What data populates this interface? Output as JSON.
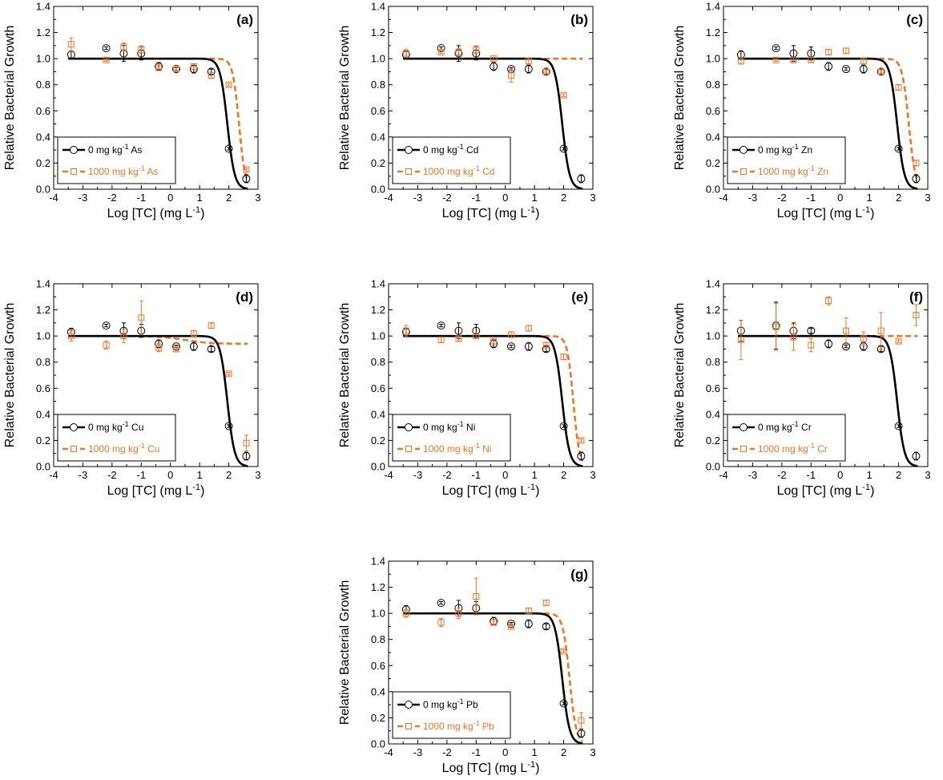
{
  "figure": {
    "xlabel": "Log [TC] (mg L",
    "xlabel_sup": "-1",
    "xlabel_end": ")",
    "ylabel": "Relative Bacterial Growth",
    "colors": {
      "control": "#000000",
      "treated": "#e8772e"
    }
  },
  "chart_data": [
    {
      "type": "scatter",
      "panel": "(a)",
      "metal": "As",
      "xlim": [
        -4,
        3
      ],
      "ylim": [
        0,
        1.4
      ],
      "xticks": [
        "-4",
        "-3",
        "-2",
        "-1",
        "0",
        "1",
        "2",
        "3"
      ],
      "yticks": [
        "0.0",
        "0.2",
        "0.4",
        "0.6",
        "0.8",
        "1.0",
        "1.2",
        "1.4"
      ],
      "x": [
        -3.4,
        -2.2,
        -1.6,
        -1.0,
        -0.4,
        0.2,
        0.8,
        1.4,
        2.0,
        2.6
      ],
      "series": [
        {
          "name": "0 mg kg-1 As",
          "legend_pre": "0 mg kg",
          "legend_post": " As",
          "values": [
            1.03,
            1.08,
            1.04,
            1.04,
            0.94,
            0.92,
            0.92,
            0.9,
            0.31,
            0.08
          ],
          "errors": [
            0.03,
            0.01,
            0.06,
            0.05,
            0.03,
            0.01,
            0.03,
            0.02,
            0.01,
            0.03
          ],
          "fit": {
            "top": 1.0,
            "bottom": 0,
            "logEC50": 1.95,
            "hill": 3.5
          }
        },
        {
          "name": "1000 mg kg-1 As",
          "legend_pre": "1000 mg kg",
          "legend_post": " As",
          "values": [
            1.11,
            0.99,
            1.09,
            1.07,
            0.93,
            0.92,
            0.94,
            0.87,
            0.8,
            0.15
          ],
          "errors": [
            0.05,
            0.01,
            0.03,
            0.03,
            0.01,
            0.02,
            0.02,
            0.02,
            0.01,
            0.01
          ],
          "fit": {
            "top": 1.0,
            "bottom": 0,
            "logEC50": 2.35,
            "hill": 4.0
          }
        }
      ]
    },
    {
      "type": "scatter",
      "panel": "(b)",
      "metal": "Cd",
      "xlim": [
        -4,
        3
      ],
      "ylim": [
        0,
        1.4
      ],
      "xticks": [
        "-4",
        "-3",
        "-2",
        "-1",
        "0",
        "1",
        "2",
        "3"
      ],
      "yticks": [
        "0.0",
        "0.2",
        "0.4",
        "0.6",
        "0.8",
        "1.0",
        "1.2",
        "1.4"
      ],
      "x": [
        -3.4,
        -2.2,
        -1.6,
        -1.0,
        -0.4,
        0.2,
        0.8,
        1.4,
        2.0,
        2.6
      ],
      "series": [
        {
          "name": "0 mg kg-1 Cd",
          "legend_pre": "0 mg kg",
          "legend_post": " Cd",
          "values": [
            1.03,
            1.08,
            1.04,
            1.04,
            0.94,
            0.92,
            0.92,
            0.9,
            0.31,
            0.08
          ],
          "errors": [
            0.03,
            0.01,
            0.06,
            0.05,
            0.03,
            0.01,
            0.03,
            0.02,
            0.01,
            0.03
          ],
          "fit": {
            "top": 1.0,
            "bottom": 0,
            "logEC50": 1.95,
            "hill": 3.5
          }
        },
        {
          "name": "1000 mg kg-1 Cd",
          "legend_pre": "1000 mg kg",
          "legend_post": " Cd",
          "values": [
            1.04,
            1.05,
            1.05,
            1.07,
            1.0,
            0.87,
            0.98,
            0.9,
            0.72,
            null
          ],
          "errors": [
            0.03,
            0.01,
            0.03,
            0.03,
            0.01,
            0.05,
            0.02,
            0.01,
            0.01,
            0
          ],
          "fit": {
            "top": 1.0,
            "bottom": 0,
            "logEC50": 8.0,
            "hill": 1.0
          }
        }
      ]
    },
    {
      "type": "scatter",
      "panel": "(c)",
      "metal": "Zn",
      "xlim": [
        -4,
        3
      ],
      "ylim": [
        0,
        1.4
      ],
      "xticks": [
        "-4",
        "-3",
        "-2",
        "-1",
        "0",
        "1",
        "2",
        "3"
      ],
      "yticks": [
        "0.0",
        "0.2",
        "0.4",
        "0.6",
        "0.8",
        "1.0",
        "1.2",
        "1.4"
      ],
      "x": [
        -3.4,
        -2.2,
        -1.6,
        -1.0,
        -0.4,
        0.2,
        0.8,
        1.4,
        2.0,
        2.6
      ],
      "series": [
        {
          "name": "0 mg kg-1 Zn",
          "legend_pre": "0 mg kg",
          "legend_post": " Zn",
          "values": [
            1.03,
            1.08,
            1.04,
            1.04,
            0.94,
            0.92,
            0.92,
            0.9,
            0.31,
            0.08
          ],
          "errors": [
            0.03,
            0.01,
            0.06,
            0.05,
            0.03,
            0.01,
            0.03,
            0.02,
            0.01,
            0.03
          ],
          "fit": {
            "top": 1.0,
            "bottom": 0,
            "logEC50": 1.95,
            "hill": 3.5
          }
        },
        {
          "name": "1000 mg kg-1 Zn",
          "legend_pre": "1000 mg kg",
          "legend_post": " Zn",
          "values": [
            0.98,
            0.99,
            0.99,
            0.99,
            1.05,
            1.06,
            0.98,
            0.9,
            0.78,
            0.2
          ],
          "errors": [
            0.02,
            0.01,
            0.02,
            0.02,
            0.02,
            0.02,
            0.02,
            0.01,
            0.02,
            0.02
          ],
          "fit": {
            "top": 1.0,
            "bottom": 0,
            "logEC50": 2.35,
            "hill": 3.8
          }
        }
      ]
    },
    {
      "type": "scatter",
      "panel": "(d)",
      "metal": "Cu",
      "xlim": [
        -4,
        3
      ],
      "ylim": [
        0,
        1.4
      ],
      "xticks": [
        "-4",
        "-3",
        "-2",
        "-1",
        "0",
        "1",
        "2",
        "3"
      ],
      "yticks": [
        "0.0",
        "0.2",
        "0.4",
        "0.6",
        "0.8",
        "1.0",
        "1.2",
        "1.4"
      ],
      "x": [
        -3.4,
        -2.2,
        -1.6,
        -1.0,
        -0.4,
        0.2,
        0.8,
        1.4,
        2.0,
        2.6
      ],
      "series": [
        {
          "name": "0 mg kg-1 Cu",
          "legend_pre": "0 mg kg",
          "legend_post": " Cu",
          "values": [
            1.03,
            1.08,
            1.04,
            1.04,
            0.94,
            0.92,
            0.92,
            0.9,
            0.31,
            0.08
          ],
          "errors": [
            0.03,
            0.01,
            0.06,
            0.05,
            0.03,
            0.01,
            0.03,
            0.02,
            0.01,
            0.03
          ],
          "fit": {
            "top": 1.0,
            "bottom": 0,
            "logEC50": 1.95,
            "hill": 3.5
          }
        },
        {
          "name": "1000 mg kg-1 Cu",
          "legend_pre": "1000 mg kg",
          "legend_post": " Cu",
          "values": [
            1.0,
            0.93,
            1.0,
            1.14,
            0.91,
            0.9,
            1.02,
            1.08,
            0.71,
            0.18
          ],
          "errors": [
            0.04,
            0.03,
            0.05,
            0.13,
            0.03,
            0.02,
            0.02,
            0.02,
            0.01,
            0.06
          ],
          "fit": {
            "top": 1.0,
            "bottom": 0.94,
            "logEC50": 0.5,
            "hill": 1.0
          }
        }
      ]
    },
    {
      "type": "scatter",
      "panel": "(e)",
      "metal": "Ni",
      "xlim": [
        -4,
        3
      ],
      "ylim": [
        0,
        1.4
      ],
      "xticks": [
        "-4",
        "-3",
        "-2",
        "-1",
        "0",
        "1",
        "2",
        "3"
      ],
      "yticks": [
        "0.0",
        "0.2",
        "0.4",
        "0.6",
        "0.8",
        "1.0",
        "1.2",
        "1.4"
      ],
      "x": [
        -3.4,
        -2.2,
        -1.6,
        -1.0,
        -0.4,
        0.2,
        0.8,
        1.4,
        2.0,
        2.6
      ],
      "series": [
        {
          "name": "0 mg kg-1 Ni",
          "legend_pre": "0 mg kg",
          "legend_post": " Ni",
          "values": [
            1.03,
            1.08,
            1.04,
            1.04,
            0.94,
            0.92,
            0.92,
            0.9,
            0.31,
            0.08
          ],
          "errors": [
            0.03,
            0.01,
            0.06,
            0.05,
            0.03,
            0.01,
            0.03,
            0.02,
            0.01,
            0.03
          ],
          "fit": {
            "top": 1.0,
            "bottom": 0,
            "logEC50": 1.95,
            "hill": 3.5
          }
        },
        {
          "name": "1000 mg kg-1 Ni",
          "legend_pre": "1000 mg kg",
          "legend_post": " Ni",
          "values": [
            1.04,
            0.97,
            0.98,
            1.0,
            0.96,
            1.01,
            1.06,
            0.93,
            0.84,
            0.2
          ],
          "errors": [
            0.04,
            0.02,
            0.02,
            0.02,
            0.02,
            0.02,
            0.02,
            0.02,
            0.02,
            0.01
          ],
          "fit": {
            "top": 1.0,
            "bottom": 0,
            "logEC50": 2.33,
            "hill": 4.2
          }
        }
      ]
    },
    {
      "type": "scatter",
      "panel": "(f)",
      "metal": "Cr",
      "xlim": [
        -4,
        3
      ],
      "ylim": [
        0,
        1.4
      ],
      "xticks": [
        "-4",
        "-3",
        "-2",
        "-1",
        "0",
        "1",
        "2",
        "3"
      ],
      "yticks": [
        "0.0",
        "0.2",
        "0.4",
        "0.6",
        "0.8",
        "1.0",
        "1.2",
        "1.4"
      ],
      "x": [
        -3.4,
        -2.2,
        -1.6,
        -1.0,
        -0.4,
        0.2,
        0.8,
        1.4,
        2.0,
        2.6
      ],
      "series": [
        {
          "name": "0 mg kg-1 Cr",
          "legend_pre": "0 mg kg",
          "legend_post": " Cr",
          "values": [
            1.04,
            1.08,
            1.04,
            1.04,
            0.94,
            0.92,
            0.92,
            0.9,
            0.31,
            0.08
          ],
          "errors": [
            0.08,
            0.18,
            0.06,
            0.02,
            0.03,
            0.01,
            0.03,
            0.02,
            0.01,
            0.03
          ],
          "fit": {
            "top": 1.0,
            "bottom": 0,
            "logEC50": 1.95,
            "hill": 3.5
          }
        },
        {
          "name": "1000 mg kg-1 Cr",
          "legend_pre": "1000 mg kg",
          "legend_post": " Cr",
          "values": [
            0.97,
            1.07,
            0.99,
            0.93,
            1.27,
            1.04,
            0.98,
            1.04,
            0.96,
            1.16
          ],
          "errors": [
            0.15,
            0.18,
            0.1,
            0.05,
            0.03,
            0.1,
            0.05,
            0.14,
            0.01,
            0.08
          ],
          "fit": {
            "top": 1.0,
            "bottom": 0,
            "logEC50": 8.0,
            "hill": 1.0
          }
        }
      ]
    },
    {
      "type": "scatter",
      "panel": "(g)",
      "metal": "Pb",
      "xlim": [
        -4,
        3
      ],
      "ylim": [
        0,
        1.4
      ],
      "xticks": [
        "-4",
        "-3",
        "-2",
        "-1",
        "0",
        "1",
        "2",
        "3"
      ],
      "yticks": [
        "0.0",
        "0.2",
        "0.4",
        "0.6",
        "0.8",
        "1.0",
        "1.2",
        "1.4"
      ],
      "x": [
        -3.4,
        -2.2,
        -1.6,
        -1.0,
        -0.4,
        0.2,
        0.8,
        1.4,
        2.0,
        2.6
      ],
      "series": [
        {
          "name": "0 mg kg-1 Pb",
          "legend_pre": "0 mg kg",
          "legend_post": " Pb",
          "values": [
            1.03,
            1.08,
            1.04,
            1.04,
            0.94,
            0.92,
            0.92,
            0.9,
            0.31,
            0.08
          ],
          "errors": [
            0.03,
            0.01,
            0.06,
            0.05,
            0.03,
            0.01,
            0.03,
            0.02,
            0.01,
            0.03
          ],
          "fit": {
            "top": 1.0,
            "bottom": 0,
            "logEC50": 1.95,
            "hill": 3.5
          }
        },
        {
          "name": "1000 mg kg-1 Pb",
          "legend_pre": "1000 mg kg",
          "legend_post": " Pb",
          "values": [
            1.0,
            0.93,
            1.0,
            1.13,
            0.93,
            0.9,
            1.02,
            1.08,
            0.71,
            0.18
          ],
          "errors": [
            0.03,
            0.03,
            0.04,
            0.14,
            0.02,
            0.02,
            0.02,
            0.02,
            0.01,
            0.06
          ],
          "fit": {
            "top": 1.0,
            "bottom": 0,
            "logEC50": 2.2,
            "hill": 3.8
          }
        }
      ]
    }
  ]
}
